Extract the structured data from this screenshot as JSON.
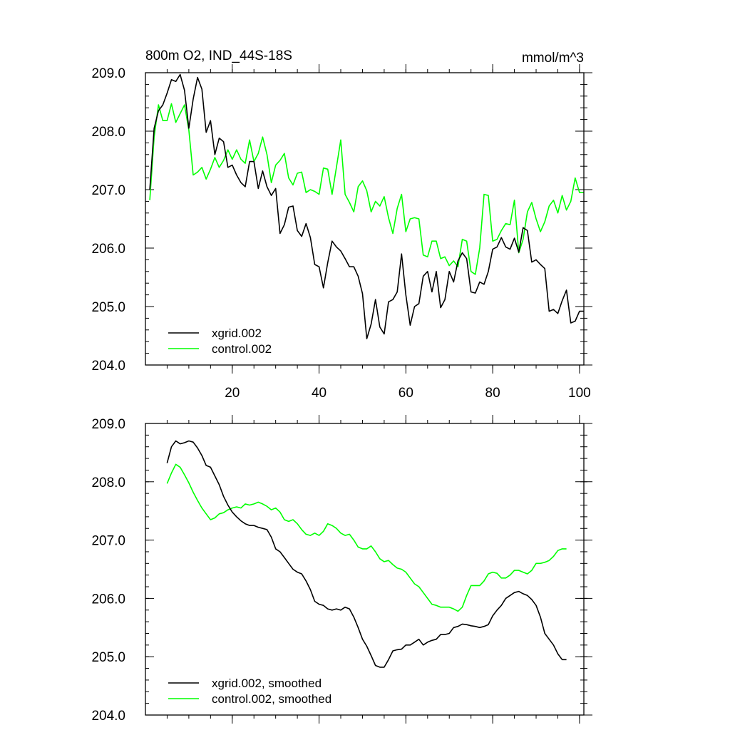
{
  "chart_data": [
    {
      "type": "line",
      "title": "800m O2, IND_44S-18S",
      "units": "mmol/m^3",
      "xlim": [
        0,
        101
      ],
      "ylim": [
        204.0,
        209.0
      ],
      "xticks": [
        20,
        40,
        60,
        80,
        100
      ],
      "yticks": [
        204.0,
        205.0,
        206.0,
        207.0,
        208.0,
        209.0
      ],
      "ytick_labels": [
        "204.0",
        "205.0",
        "206.0",
        "207.0",
        "208.0",
        "209.0"
      ],
      "xtick_labels": [
        "20",
        "40",
        "60",
        "80",
        "100"
      ],
      "legend_position": "bottom-left",
      "series": [
        {
          "name": "xgrid.002",
          "color": "#000000",
          "x": [
            1,
            2,
            3,
            4,
            5,
            6,
            7,
            8,
            9,
            10,
            11,
            12,
            13,
            14,
            15,
            16,
            17,
            18,
            19,
            20,
            21,
            22,
            23,
            24,
            25,
            26,
            27,
            28,
            29,
            30,
            31,
            32,
            33,
            34,
            35,
            36,
            37,
            38,
            39,
            40,
            41,
            42,
            43,
            44,
            45,
            46,
            47,
            48,
            49,
            50,
            51,
            52,
            53,
            54,
            55,
            56,
            57,
            58,
            59,
            60,
            61,
            62,
            63,
            64,
            65,
            66,
            67,
            68,
            69,
            70,
            71,
            72,
            73,
            74,
            75,
            76,
            77,
            78,
            79,
            80,
            81,
            82,
            83,
            84,
            85,
            86,
            87,
            88,
            89,
            90,
            91,
            92,
            93,
            94,
            95,
            96,
            97,
            98,
            99,
            100,
            101
          ],
          "values": [
            207.0,
            208.05,
            208.35,
            208.45,
            208.65,
            208.88,
            208.85,
            208.97,
            208.7,
            208.05,
            208.55,
            208.92,
            208.72,
            207.98,
            208.18,
            207.6,
            207.88,
            207.82,
            207.38,
            207.42,
            207.25,
            207.12,
            207.05,
            207.48,
            207.48,
            207.02,
            207.32,
            207.05,
            206.9,
            207.02,
            206.25,
            206.4,
            206.7,
            206.72,
            206.3,
            206.2,
            206.42,
            206.18,
            205.72,
            205.68,
            205.32,
            205.75,
            206.12,
            206.02,
            205.95,
            205.82,
            205.68,
            205.68,
            205.52,
            205.22,
            204.45,
            204.7,
            205.12,
            204.65,
            204.53,
            205.08,
            205.12,
            205.25,
            205.9,
            205.2,
            204.68,
            205.0,
            205.05,
            205.52,
            205.6,
            205.25,
            205.6,
            204.98,
            205.12,
            205.6,
            205.42,
            205.78,
            205.92,
            205.82,
            205.25,
            205.23,
            205.42,
            205.38,
            205.6,
            205.98,
            206.02,
            206.18,
            206.02,
            205.98,
            206.17,
            205.93,
            206.35,
            206.3,
            205.76,
            205.8,
            205.72,
            205.65,
            204.92,
            204.95,
            204.88,
            205.1,
            205.28,
            204.72,
            204.75,
            204.92,
            204.92
          ]
        },
        {
          "name": "control.002",
          "color": "#00ff00",
          "x": [
            1,
            2,
            3,
            4,
            5,
            6,
            7,
            8,
            9,
            10,
            11,
            12,
            13,
            14,
            15,
            16,
            17,
            18,
            19,
            20,
            21,
            22,
            23,
            24,
            25,
            26,
            27,
            28,
            29,
            30,
            31,
            32,
            33,
            34,
            35,
            36,
            37,
            38,
            39,
            40,
            41,
            42,
            43,
            44,
            45,
            46,
            47,
            48,
            49,
            50,
            51,
            52,
            53,
            54,
            55,
            56,
            57,
            58,
            59,
            60,
            61,
            62,
            63,
            64,
            65,
            66,
            67,
            68,
            69,
            70,
            71,
            72,
            73,
            74,
            75,
            76,
            77,
            78,
            79,
            80,
            81,
            82,
            83,
            84,
            85,
            86,
            87,
            88,
            89,
            90,
            91,
            92,
            93,
            94,
            95,
            96,
            97,
            98,
            99,
            100,
            101
          ],
          "values": [
            206.82,
            207.9,
            208.45,
            208.18,
            208.18,
            208.47,
            208.15,
            208.3,
            208.45,
            208.02,
            207.25,
            207.3,
            207.38,
            207.18,
            207.35,
            207.55,
            207.38,
            207.5,
            207.68,
            207.52,
            207.68,
            207.52,
            207.45,
            207.85,
            207.48,
            207.62,
            207.9,
            207.6,
            207.12,
            207.42,
            207.5,
            207.62,
            207.2,
            207.08,
            207.28,
            207.3,
            206.95,
            207.0,
            206.97,
            206.92,
            207.37,
            207.35,
            206.92,
            207.38,
            207.85,
            206.92,
            206.78,
            206.62,
            207.05,
            207.15,
            206.98,
            206.62,
            206.8,
            206.72,
            206.88,
            206.52,
            206.25,
            206.68,
            206.92,
            206.28,
            206.5,
            206.52,
            206.5,
            205.88,
            205.85,
            206.12,
            206.12,
            205.82,
            205.85,
            205.7,
            205.78,
            205.68,
            206.15,
            206.12,
            205.6,
            205.55,
            206.0,
            206.92,
            206.9,
            206.12,
            206.15,
            206.3,
            206.42,
            206.4,
            206.82,
            205.92,
            206.15,
            206.62,
            206.78,
            206.5,
            206.28,
            206.45,
            206.72,
            206.82,
            206.6,
            206.9,
            206.65,
            206.8,
            207.2,
            206.95,
            206.95
          ]
        }
      ]
    },
    {
      "type": "line",
      "title": "",
      "xlim": [
        0,
        101
      ],
      "ylim": [
        204.0,
        209.0
      ],
      "xticks": [
        20,
        40,
        60,
        80,
        100
      ],
      "yticks": [
        204.0,
        205.0,
        206.0,
        207.0,
        208.0,
        209.0
      ],
      "ytick_labels": [
        "204.0",
        "205.0",
        "206.0",
        "207.0",
        "208.0",
        "209.0"
      ],
      "xtick_labels": [],
      "legend_position": "bottom-left",
      "series": [
        {
          "name": "xgrid.002, smoothed",
          "color": "#000000",
          "x": [
            5,
            6,
            7,
            8,
            9,
            10,
            11,
            12,
            13,
            14,
            15,
            16,
            17,
            18,
            19,
            20,
            21,
            22,
            23,
            24,
            25,
            26,
            27,
            28,
            29,
            30,
            31,
            32,
            33,
            34,
            35,
            36,
            37,
            38,
            39,
            40,
            41,
            42,
            43,
            44,
            45,
            46,
            47,
            48,
            49,
            50,
            51,
            52,
            53,
            54,
            55,
            56,
            57,
            58,
            59,
            60,
            61,
            62,
            63,
            64,
            65,
            66,
            67,
            68,
            69,
            70,
            71,
            72,
            73,
            74,
            75,
            76,
            77,
            78,
            79,
            80,
            81,
            82,
            83,
            84,
            85,
            86,
            87,
            88,
            89,
            90,
            91,
            92,
            93,
            94,
            95,
            96,
            97
          ],
          "values": [
            208.32,
            208.6,
            208.7,
            208.65,
            208.67,
            208.7,
            208.68,
            208.58,
            208.45,
            208.28,
            208.25,
            208.1,
            207.95,
            207.75,
            207.6,
            207.48,
            207.4,
            207.33,
            207.28,
            207.25,
            207.25,
            207.22,
            207.2,
            207.18,
            207.05,
            206.85,
            206.8,
            206.7,
            206.6,
            206.5,
            206.45,
            206.42,
            206.3,
            206.15,
            205.95,
            205.9,
            205.88,
            205.82,
            205.8,
            205.82,
            205.8,
            205.85,
            205.82,
            205.68,
            205.5,
            205.3,
            205.18,
            205.02,
            204.85,
            204.82,
            204.82,
            204.95,
            205.1,
            205.12,
            205.13,
            205.2,
            205.2,
            205.25,
            205.3,
            205.2,
            205.25,
            205.28,
            205.3,
            205.38,
            205.38,
            205.4,
            205.5,
            205.52,
            205.56,
            205.55,
            205.53,
            205.52,
            205.5,
            205.52,
            205.55,
            205.7,
            205.8,
            205.88,
            206.0,
            206.05,
            206.1,
            206.12,
            206.08,
            206.05,
            205.98,
            205.88,
            205.68,
            205.4,
            205.3,
            205.2,
            205.05,
            204.95,
            204.95
          ]
        },
        {
          "name": "control.002, smoothed",
          "color": "#00ff00",
          "x": [
            5,
            6,
            7,
            8,
            9,
            10,
            11,
            12,
            13,
            14,
            15,
            16,
            17,
            18,
            19,
            20,
            21,
            22,
            23,
            24,
            25,
            26,
            27,
            28,
            29,
            30,
            31,
            32,
            33,
            34,
            35,
            36,
            37,
            38,
            39,
            40,
            41,
            42,
            43,
            44,
            45,
            46,
            47,
            48,
            49,
            50,
            51,
            52,
            53,
            54,
            55,
            56,
            57,
            58,
            59,
            60,
            61,
            62,
            63,
            64,
            65,
            66,
            67,
            68,
            69,
            70,
            71,
            72,
            73,
            74,
            75,
            76,
            77,
            78,
            79,
            80,
            81,
            82,
            83,
            84,
            85,
            86,
            87,
            88,
            89,
            90,
            91,
            92,
            93,
            94,
            95,
            96,
            97
          ],
          "values": [
            207.97,
            208.15,
            208.3,
            208.25,
            208.12,
            207.98,
            207.82,
            207.68,
            207.55,
            207.45,
            207.35,
            207.38,
            207.45,
            207.47,
            207.52,
            207.55,
            207.57,
            207.55,
            207.62,
            207.6,
            207.62,
            207.65,
            207.62,
            207.58,
            207.52,
            207.55,
            207.48,
            207.35,
            207.32,
            207.35,
            207.28,
            207.18,
            207.1,
            207.08,
            207.12,
            207.08,
            207.15,
            207.28,
            207.25,
            207.2,
            207.12,
            207.08,
            207.1,
            207.0,
            206.88,
            206.85,
            206.85,
            206.9,
            206.8,
            206.68,
            206.63,
            206.65,
            206.58,
            206.52,
            206.5,
            206.45,
            206.35,
            206.25,
            206.2,
            206.1,
            206.0,
            205.9,
            205.88,
            205.85,
            205.85,
            205.85,
            205.82,
            205.78,
            205.85,
            206.05,
            206.22,
            206.22,
            206.22,
            206.3,
            206.42,
            206.45,
            206.43,
            206.35,
            206.35,
            206.4,
            206.48,
            206.48,
            206.45,
            206.42,
            206.48,
            206.6,
            206.6,
            206.62,
            206.65,
            206.72,
            206.82,
            206.85,
            206.85
          ]
        }
      ]
    }
  ]
}
